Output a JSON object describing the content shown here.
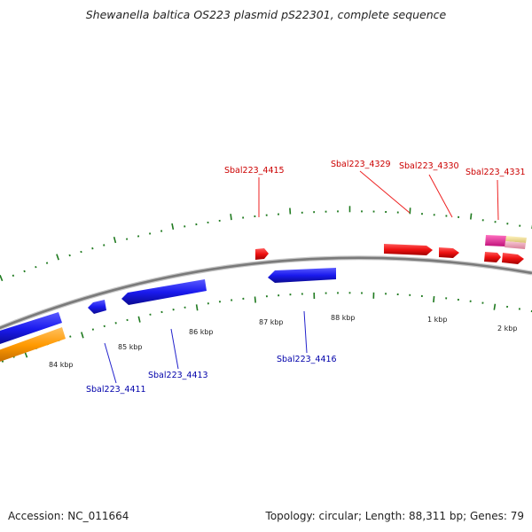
{
  "title": "Shewanella baltica OS223 plasmid pS22301, complete sequence",
  "footer": {
    "accession": "Accession: NC_011664",
    "topology": "Topology: circular; Length: 88,311 bp; Genes: 79"
  },
  "scale_labels": [
    "84 kbp",
    "85 kbp",
    "86 kbp",
    "87 kbp",
    "88 kbp",
    "1 kbp",
    "2 kbp"
  ],
  "gene_labels": {
    "forward": [
      "Sbal223_4415",
      "Sbal223_4329",
      "Sbal223_4330",
      "Sbal223_4331"
    ],
    "reverse": [
      "Sbal223_4411",
      "Sbal223_4413",
      "Sbal223_4416"
    ]
  },
  "colors": {
    "forward_cds": "#ee1111",
    "reverse_cds": "#1a1aee",
    "orange_feature": "#ff9900",
    "pink_feature": "#ee2299",
    "light_pink_feature": "#f0a0b8",
    "yellow_feature": "#f0e090",
    "backbone": "#7a7a7a",
    "tick": "#1f7a1f",
    "forward_label": "#cc0000",
    "reverse_label": "#0000aa"
  }
}
